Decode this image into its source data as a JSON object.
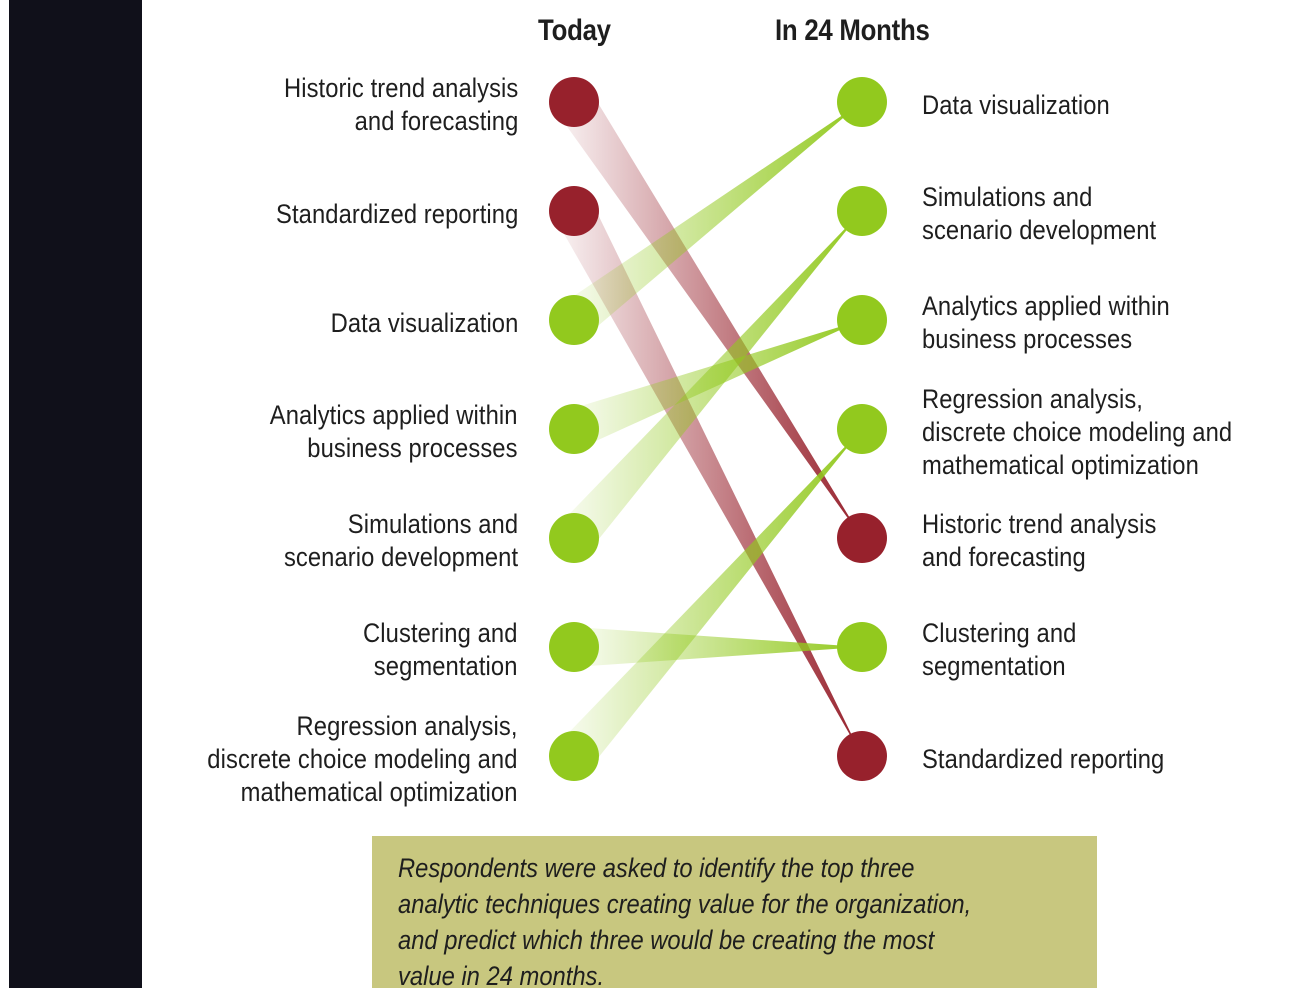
{
  "headers": {
    "today": "Today",
    "future": "In 24 Months"
  },
  "colors": {
    "green": "#92c91e",
    "red": "#97212c",
    "sidebar": "#10101a",
    "note_bg": "#c8c77f"
  },
  "today": [
    {
      "label": "Historic trend analysis\nand forecasting",
      "color": "red"
    },
    {
      "label": "Standardized reporting",
      "color": "red"
    },
    {
      "label": "Data visualization",
      "color": "green"
    },
    {
      "label": "Analytics applied within\nbusiness processes",
      "color": "green"
    },
    {
      "label": "Simulations and\nscenario development",
      "color": "green"
    },
    {
      "label": "Clustering and\nsegmentation",
      "color": "green"
    },
    {
      "label": "Regression analysis,\ndiscrete choice modeling and\nmathematical optimization",
      "color": "green"
    }
  ],
  "future": [
    {
      "label": "Data visualization",
      "color": "green"
    },
    {
      "label": "Simulations and\nscenario development",
      "color": "green"
    },
    {
      "label": "Analytics applied within\nbusiness processes",
      "color": "green"
    },
    {
      "label": "Regression analysis,\ndiscrete choice modeling and\nmathematical optimization",
      "color": "green"
    },
    {
      "label": "Historic trend analysis\nand forecasting",
      "color": "red"
    },
    {
      "label": "Clustering and\nsegmentation",
      "color": "green"
    },
    {
      "label": "Standardized reporting",
      "color": "red"
    }
  ],
  "links": [
    {
      "from_rank_today": 1,
      "to_rank_future": 5,
      "color": "red"
    },
    {
      "from_rank_today": 2,
      "to_rank_future": 7,
      "color": "red"
    },
    {
      "from_rank_today": 3,
      "to_rank_future": 1,
      "color": "green"
    },
    {
      "from_rank_today": 4,
      "to_rank_future": 3,
      "color": "green"
    },
    {
      "from_rank_today": 5,
      "to_rank_future": 2,
      "color": "green"
    },
    {
      "from_rank_today": 6,
      "to_rank_future": 6,
      "color": "green"
    },
    {
      "from_rank_today": 7,
      "to_rank_future": 4,
      "color": "green"
    }
  ],
  "note": "Respondents were asked to identify the top three\nanalytic techniques creating value for the organization,\nand predict which three would be creating the most\nvalue in 24 months."
}
